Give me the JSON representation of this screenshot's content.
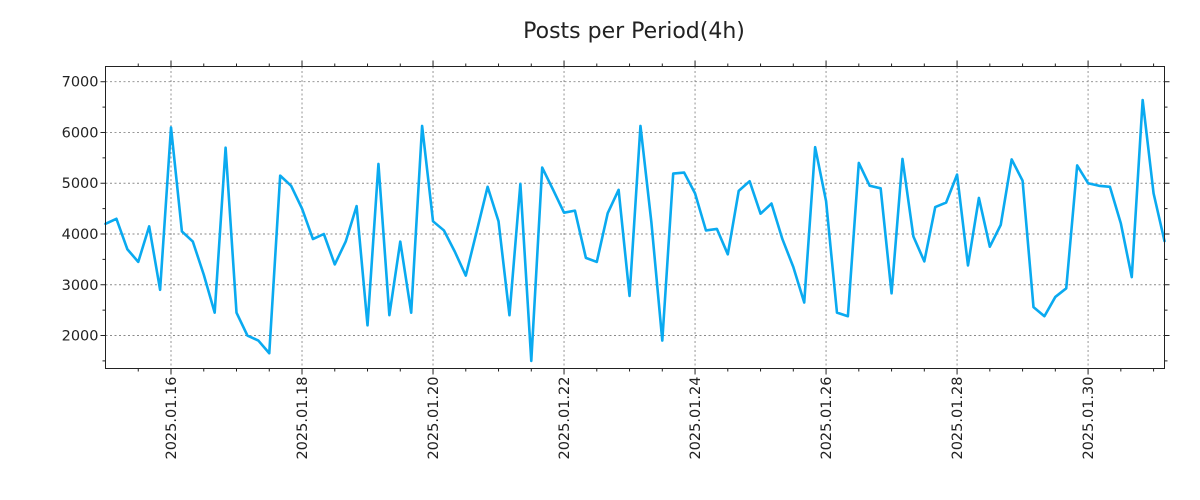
{
  "chart_data": {
    "type": "line",
    "title": "Posts per Period(4h)",
    "xlabel": "",
    "ylabel": "",
    "x_start": "2025-01-15T00:00",
    "x_end": "2025-01-31T04:00",
    "x_step_hours": 4,
    "x_day_range": [
      0,
      16.1667
    ],
    "ylim": [
      1350,
      7300
    ],
    "yticks": [
      2000,
      3000,
      4000,
      5000,
      6000,
      7000
    ],
    "ytick_labels": [
      "2000",
      "3000",
      "4000",
      "5000",
      "6000",
      "7000"
    ],
    "xticks_day_offset": [
      1,
      3,
      5,
      7,
      9,
      11,
      13,
      15
    ],
    "xtick_labels": [
      "2025.01.16",
      "2025.01.18",
      "2025.01.20",
      "2025.01.22",
      "2025.01.24",
      "2025.01.26",
      "2025.01.28",
      "2025.01.30"
    ],
    "grid": true,
    "series": [
      {
        "name": "Posts per Period(4h)",
        "color": "#0aaaf0",
        "values": [
          4200,
          4300,
          3700,
          3450,
          4150,
          2900,
          6100,
          4050,
          3850,
          3200,
          2450,
          5700,
          2450,
          2000,
          1900,
          1650,
          5150,
          4950,
          4500,
          3900,
          4000,
          3400,
          3850,
          4550,
          2200,
          5380,
          2400,
          3850,
          2450,
          6130,
          4250,
          4070,
          3650,
          3180,
          4050,
          4930,
          4250,
          2400,
          4990,
          1500,
          5310,
          4870,
          4420,
          4460,
          3530,
          3450,
          4410,
          4870,
          2780,
          6130,
          4230,
          1900,
          5190,
          5210,
          4800,
          4070,
          4100,
          3600,
          4850,
          5040,
          4400,
          4600,
          3900,
          3350,
          2650,
          5710,
          4650,
          2450,
          2380,
          5400,
          4950,
          4900,
          2830,
          5480,
          3950,
          3460,
          4530,
          4620,
          5170,
          3380,
          4710,
          3750,
          4180,
          5470,
          5050,
          2560,
          2380,
          2760,
          2930,
          5350,
          5000,
          4950,
          4930,
          4210,
          3150,
          6640,
          4800,
          3860
        ]
      }
    ]
  }
}
